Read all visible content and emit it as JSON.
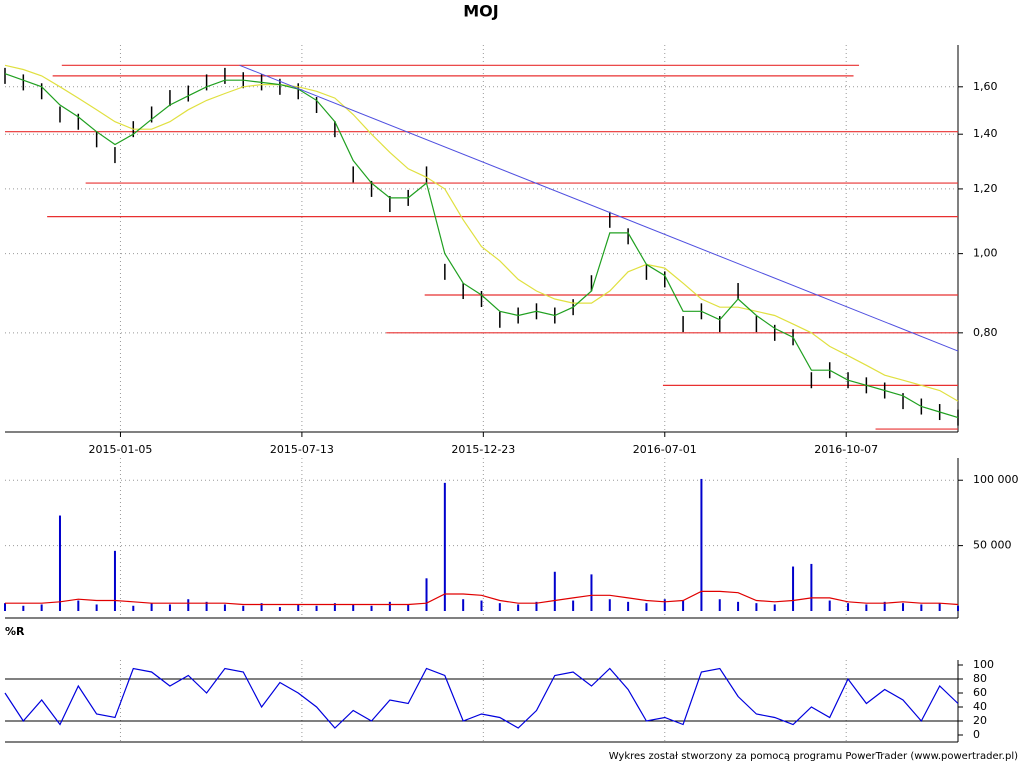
{
  "chart_data": [
    {
      "type": "line",
      "title": "MOJ",
      "log": true,
      "grid": true,
      "xlim": [
        0,
        52
      ],
      "xticks": [
        {
          "value": 6.3,
          "label": "2015-01-05"
        },
        {
          "value": 16.2,
          "label": "2015-07-13"
        },
        {
          "value": 26.1,
          "label": "2015-12-23"
        },
        {
          "value": 36.0,
          "label": "2016-07-01"
        },
        {
          "value": 45.9,
          "label": "2016-10-07"
        }
      ],
      "ylim": [
        0.605,
        1.8
      ],
      "yticks": [
        {
          "value": 0.8,
          "label": "0,80"
        },
        {
          "value": 1.0,
          "label": "1,00"
        },
        {
          "value": 1.2,
          "label": "1,20"
        },
        {
          "value": 1.4,
          "label": "1,40"
        },
        {
          "value": 1.6,
          "label": "1,60"
        }
      ],
      "series": [
        {
          "color": "#000000",
          "marker": "tick",
          "values": [
            1.65,
            1.62,
            1.58,
            1.48,
            1.45,
            1.38,
            1.32,
            1.42,
            1.48,
            1.55,
            1.57,
            1.62,
            1.65,
            1.63,
            1.62,
            1.6,
            1.58,
            1.52,
            1.42,
            1.25,
            1.2,
            1.15,
            1.17,
            1.25,
            0.95,
            0.9,
            0.88,
            0.83,
            0.84,
            0.85,
            0.84,
            0.86,
            0.92,
            1.1,
            1.05,
            0.95,
            0.93,
            0.82,
            0.85,
            0.82,
            0.9,
            0.82,
            0.8,
            0.79,
            0.7,
            0.72,
            0.7,
            0.69,
            0.68,
            0.66,
            0.65,
            0.64,
            0.63
          ]
        },
        {
          "color": "#e0e040",
          "values": [
            1.7,
            1.68,
            1.65,
            1.6,
            1.55,
            1.5,
            1.45,
            1.42,
            1.42,
            1.45,
            1.5,
            1.54,
            1.57,
            1.6,
            1.61,
            1.61,
            1.6,
            1.58,
            1.55,
            1.48,
            1.4,
            1.33,
            1.27,
            1.24,
            1.2,
            1.1,
            1.02,
            0.98,
            0.93,
            0.9,
            0.88,
            0.87,
            0.87,
            0.9,
            0.95,
            0.97,
            0.96,
            0.92,
            0.88,
            0.86,
            0.86,
            0.85,
            0.84,
            0.82,
            0.8,
            0.77,
            0.75,
            0.73,
            0.71,
            0.7,
            0.69,
            0.68,
            0.66
          ]
        },
        {
          "color": "#20a020",
          "values": [
            1.66,
            1.63,
            1.6,
            1.52,
            1.47,
            1.41,
            1.36,
            1.4,
            1.46,
            1.52,
            1.56,
            1.6,
            1.63,
            1.63,
            1.62,
            1.61,
            1.59,
            1.54,
            1.45,
            1.3,
            1.22,
            1.17,
            1.17,
            1.22,
            1.0,
            0.92,
            0.89,
            0.85,
            0.84,
            0.85,
            0.84,
            0.86,
            0.9,
            1.06,
            1.06,
            0.97,
            0.94,
            0.85,
            0.85,
            0.83,
            0.88,
            0.84,
            0.81,
            0.79,
            0.72,
            0.72,
            0.7,
            0.69,
            0.68,
            0.67,
            0.65,
            0.64,
            0.63
          ]
        }
      ],
      "hlines": {
        "color": "#e83030",
        "lines": [
          {
            "value": 1.7,
            "from": 3.1,
            "to": 46.6
          },
          {
            "value": 1.65,
            "from": 2.6,
            "to": 46.3
          },
          {
            "value": 1.41,
            "from": 0,
            "to": 52
          },
          {
            "value": 1.22,
            "from": 4.4,
            "to": 52
          },
          {
            "value": 1.11,
            "from": 2.3,
            "to": 52
          },
          {
            "value": 0.89,
            "from": 22.9,
            "to": 52
          },
          {
            "value": 0.8,
            "from": 20.8,
            "to": 52
          },
          {
            "value": 0.69,
            "from": 35.9,
            "to": 52
          },
          {
            "value": 0.61,
            "from": 47.5,
            "to": 52
          }
        ]
      },
      "trendline": {
        "color": "#5050e0",
        "x": [
          12.8,
          52
        ],
        "y": [
          1.7,
          0.76
        ]
      }
    },
    {
      "type": "bar",
      "color": "#0000cc",
      "grid": true,
      "ylim": [
        0,
        117000
      ],
      "yticks": [
        {
          "value": 50000,
          "label": "50 000"
        },
        {
          "value": 100000,
          "label": "100 000"
        }
      ],
      "values": [
        6000,
        4000,
        5000,
        73000,
        8000,
        5000,
        46000,
        4000,
        6000,
        5000,
        9000,
        7000,
        5000,
        4000,
        6000,
        3000,
        5000,
        4000,
        6000,
        5000,
        4000,
        7000,
        5000,
        25000,
        98000,
        9000,
        8000,
        6000,
        5000,
        7000,
        30000,
        8000,
        28000,
        9000,
        7000,
        6000,
        9000,
        8000,
        101000,
        9000,
        7000,
        6000,
        5000,
        34000,
        36000,
        8000,
        6000,
        5000,
        7000,
        6000,
        5000,
        6000,
        4000
      ],
      "average": {
        "color": "#e00000",
        "values": [
          6000,
          6000,
          6000,
          7000,
          9000,
          8000,
          8000,
          7000,
          6000,
          6000,
          6000,
          6000,
          6000,
          5000,
          5000,
          5000,
          5000,
          5000,
          5000,
          5000,
          5000,
          5000,
          5000,
          6000,
          13000,
          13000,
          12000,
          8000,
          6000,
          6000,
          8000,
          10000,
          12000,
          12000,
          10000,
          8000,
          7000,
          8000,
          15000,
          15000,
          14000,
          8000,
          7000,
          8000,
          10000,
          10000,
          7000,
          6000,
          6000,
          7000,
          6000,
          6000,
          5000
        ]
      }
    },
    {
      "type": "line",
      "title": "%R",
      "color": "#0000dd",
      "ylim": [
        0,
        100
      ],
      "yticks": [
        0,
        20,
        40,
        60,
        80,
        100
      ],
      "hlines": {
        "color": "#000000",
        "levels": [
          20,
          80
        ]
      },
      "values": [
        60,
        20,
        50,
        15,
        70,
        30,
        25,
        95,
        90,
        70,
        85,
        60,
        95,
        90,
        40,
        75,
        60,
        40,
        10,
        35,
        20,
        50,
        45,
        95,
        85,
        20,
        30,
        25,
        10,
        35,
        85,
        90,
        70,
        95,
        65,
        20,
        25,
        15,
        90,
        95,
        55,
        30,
        25,
        15,
        40,
        25,
        80,
        45,
        65,
        50,
        20,
        70,
        45
      ]
    }
  ],
  "footer": "Wykres został stworzony za pomocą programu PowerTrader (www.powertrader.pl)"
}
